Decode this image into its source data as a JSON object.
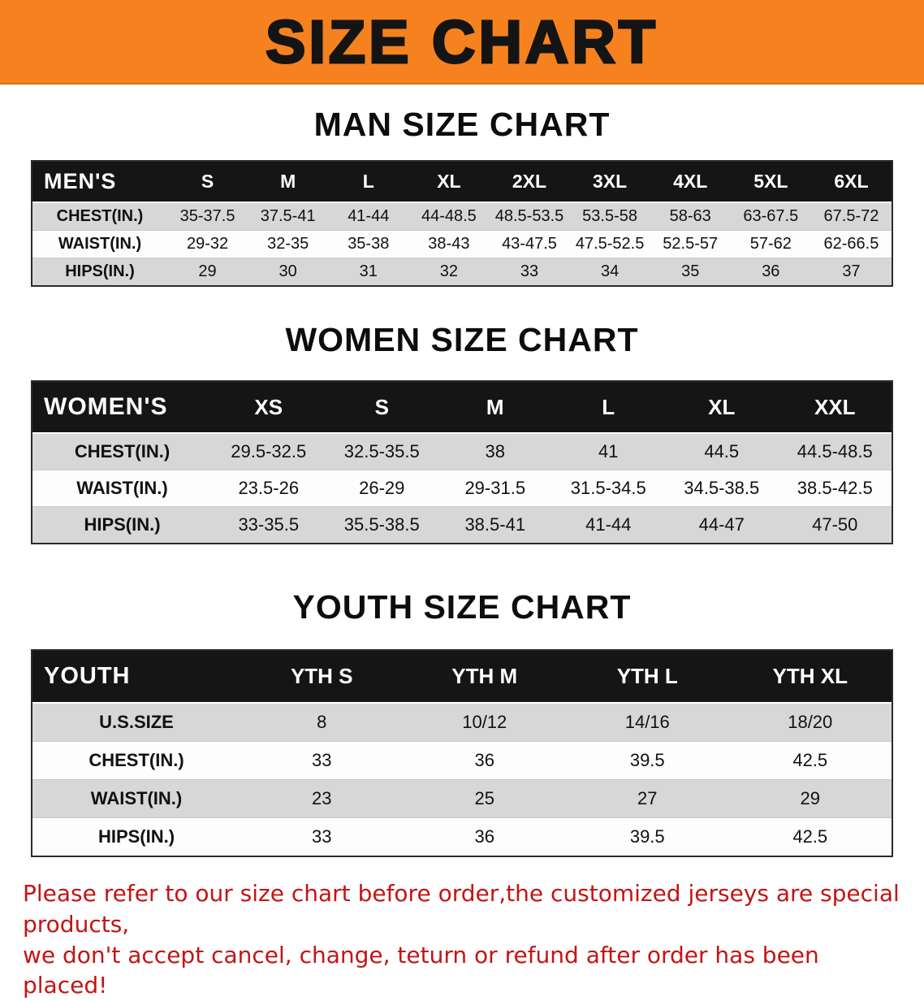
{
  "banner": {
    "title": "SIZE CHART",
    "bg_color": "#f5821f",
    "text_color": "#141414"
  },
  "sections": [
    {
      "heading": "MAN SIZE CHART",
      "table": {
        "label": "MEN'S",
        "columns": [
          "S",
          "M",
          "L",
          "XL",
          "2XL",
          "3XL",
          "4XL",
          "5XL",
          "6XL"
        ],
        "rows": [
          {
            "label": "CHEST(IN.)",
            "values": [
              "35-37.5",
              "37.5-41",
              "41-44",
              "44-48.5",
              "48.5-53.5",
              "53.5-58",
              "58-63",
              "63-67.5",
              "67.5-72"
            ]
          },
          {
            "label": "WAIST(IN.)",
            "values": [
              "29-32",
              "32-35",
              "35-38",
              "38-43",
              "43-47.5",
              "47.5-52.5",
              "52.5-57",
              "57-62",
              "62-66.5"
            ]
          },
          {
            "label": "HIPS(IN.)",
            "values": [
              "29",
              "30",
              "31",
              "32",
              "33",
              "34",
              "35",
              "36",
              "37"
            ]
          }
        ]
      }
    },
    {
      "heading": "WOMEN SIZE CHART",
      "table": {
        "label": "WOMEN'S",
        "columns": [
          "XS",
          "S",
          "M",
          "L",
          "XL",
          "XXL"
        ],
        "rows": [
          {
            "label": "CHEST(IN.)",
            "values": [
              "29.5-32.5",
              "32.5-35.5",
              "38",
              "41",
              "44.5",
              "44.5-48.5"
            ]
          },
          {
            "label": "WAIST(IN.)",
            "values": [
              "23.5-26",
              "26-29",
              "29-31.5",
              "31.5-34.5",
              "34.5-38.5",
              "38.5-42.5"
            ]
          },
          {
            "label": "HIPS(IN.)",
            "values": [
              "33-35.5",
              "35.5-38.5",
              "38.5-41",
              "41-44",
              "44-47",
              "47-50"
            ]
          }
        ]
      }
    },
    {
      "heading": "YOUTH SIZE CHART",
      "table": {
        "label": "YOUTH",
        "columns": [
          "YTH S",
          "YTH M",
          "YTH L",
          "YTH XL"
        ],
        "rows": [
          {
            "label": "U.S.SIZE",
            "values": [
              "8",
              "10/12",
              "14/16",
              "18/20"
            ]
          },
          {
            "label": "CHEST(IN.)",
            "values": [
              "33",
              "36",
              "39.5",
              "42.5"
            ]
          },
          {
            "label": "WAIST(IN.)",
            "values": [
              "23",
              "25",
              "27",
              "29"
            ]
          },
          {
            "label": "HIPS(IN.)",
            "values": [
              "33",
              "36",
              "39.5",
              "42.5"
            ]
          }
        ]
      }
    }
  ],
  "footer": {
    "color": "#c41414",
    "lines": [
      "Please refer to our size chart before order,the customized jerseys are special products,",
      "we don't accept cancel, change, teturn or refund after order has been placed!"
    ]
  }
}
